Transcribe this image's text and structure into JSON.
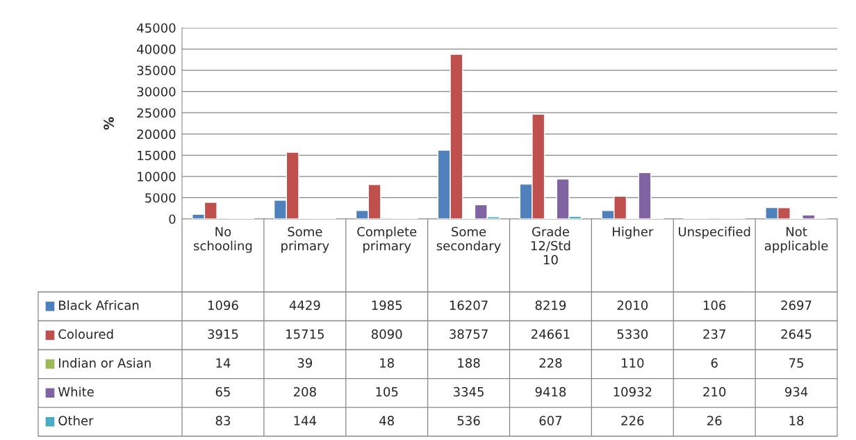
{
  "chart_data": {
    "type": "bar",
    "ylabel": "%",
    "categories": [
      "No schooling",
      "Some primary",
      "Complete primary",
      "Some secondary",
      "Grade 12/Std 10",
      "Higher",
      "Unspecified",
      "Not applicable"
    ],
    "series": [
      {
        "name": "Black African",
        "color": "#4f81bd",
        "values": [
          1096,
          4429,
          1985,
          16207,
          8219,
          2010,
          106,
          2697
        ]
      },
      {
        "name": "Coloured",
        "color": "#c0504d",
        "values": [
          3915,
          15715,
          8090,
          38757,
          24661,
          5330,
          237,
          2645
        ]
      },
      {
        "name": "Indian or Asian",
        "color": "#9bbb59",
        "values": [
          14,
          39,
          18,
          188,
          228,
          110,
          6,
          75
        ]
      },
      {
        "name": "White",
        "color": "#8064a2",
        "values": [
          65,
          208,
          105,
          3345,
          9418,
          10932,
          210,
          934
        ]
      },
      {
        "name": "Other",
        "color": "#4bacc6",
        "values": [
          83,
          144,
          48,
          536,
          607,
          226,
          26,
          18
        ]
      }
    ],
    "ylim": [
      0,
      45000
    ],
    "yticks": [
      0,
      5000,
      10000,
      15000,
      20000,
      25000,
      30000,
      35000,
      40000,
      45000
    ],
    "grid": "y",
    "legend": "bottom",
    "data_labels": true
  }
}
